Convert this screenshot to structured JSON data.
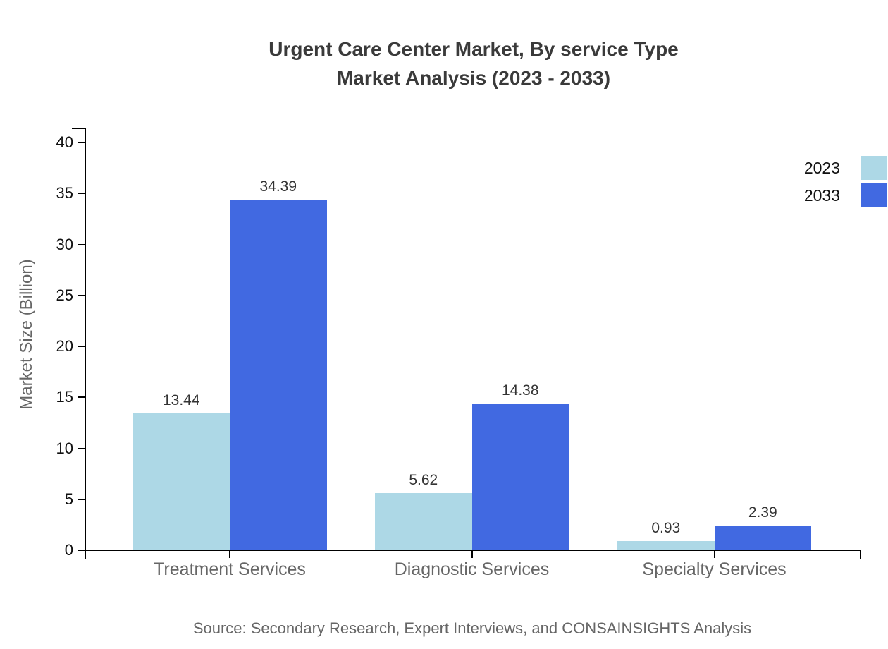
{
  "chart_data": {
    "type": "bar",
    "title": "Urgent Care Center Market, By service Type",
    "subtitle": "Market Analysis (2023 - 2033)",
    "categories": [
      "Treatment Services",
      "Diagnostic Services",
      "Specialty Services"
    ],
    "series": [
      {
        "name": "2023",
        "color": "#ADD8E6",
        "values": [
          13.44,
          5.62,
          0.93
        ]
      },
      {
        "name": "2033",
        "color": "#4169E1",
        "values": [
          34.39,
          14.38,
          2.39
        ]
      }
    ],
    "xlabel": "",
    "ylabel": "Market Size (Billion)",
    "ylim": [
      0,
      40
    ],
    "yticks": [
      0,
      5,
      10,
      15,
      20,
      25,
      30,
      35,
      40
    ],
    "grid": false,
    "legend_position": "top-right",
    "value_labels_shown": true,
    "value_label_format": "2-decimals",
    "source": "Source: Secondary Research, Expert Interviews, and CONSAINSIGHTS Analysis",
    "colors": {
      "axis": "#000000",
      "title_text": "#3a3a3a",
      "ytick_text": "#111111",
      "category_text": "#666666",
      "value_text": "#333333",
      "muted_text": "#666666",
      "background": "#ffffff"
    }
  }
}
